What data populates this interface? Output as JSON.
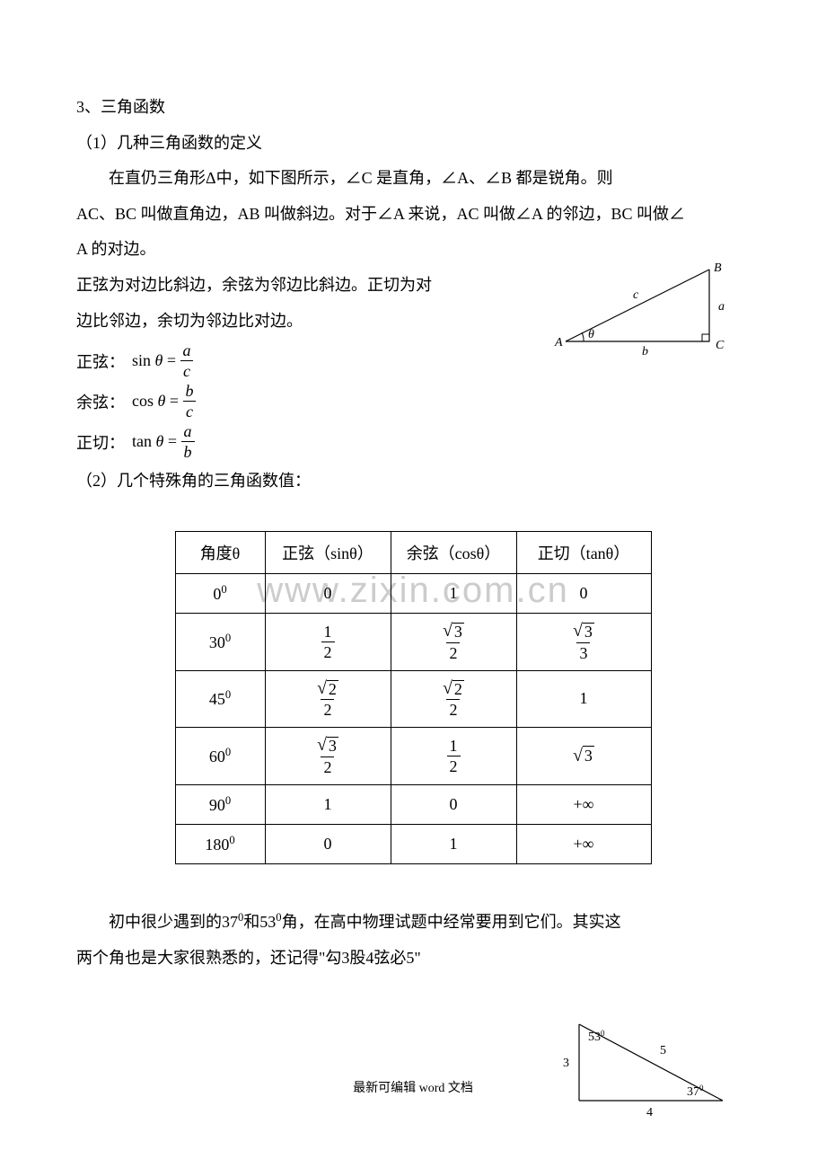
{
  "doc": {
    "section_heading": "3、三角函数",
    "sub1": "（1）几种三角函数的定义",
    "para1": "在直仍三角形Δ中，如下图所示，∠C 是直角，∠A、∠B 都是锐角。则",
    "para2": "AC、BC 叫做直角边，AB 叫做斜边。对于∠A 来说，AC 叫做∠A 的邻边，BC 叫做∠",
    "para3": "A 的对边。",
    "para4a": "正弦为对边比斜边，余弦为邻边比斜边。正切为对",
    "para4b": "边比邻边，余切为邻边比对边。",
    "formula_sin_label": "正弦：",
    "formula_sin_fn": "sin",
    "formula_sin_num": "a",
    "formula_sin_den": "c",
    "formula_cos_label": "余弦：",
    "formula_cos_fn": "cos",
    "formula_cos_num": "b",
    "formula_cos_den": "c",
    "formula_tan_label": "正切：",
    "formula_tan_fn": "tan",
    "formula_tan_num": "a",
    "formula_tan_den": "b",
    "theta": "θ",
    "equals": "=",
    "sub2": "（2）几个特殊角的三角函数值：",
    "watermark": "www.zixin.com.cn",
    "table": {
      "headers": [
        "角度θ",
        "正弦（sinθ）",
        "余弦（cosθ）",
        "正切（tanθ）"
      ],
      "rows": [
        {
          "angle_base": "0",
          "angle_sup": "0",
          "sin": {
            "type": "plain",
            "v": "0"
          },
          "cos": {
            "type": "plain",
            "v": "1"
          },
          "tan": {
            "type": "plain",
            "v": "0"
          }
        },
        {
          "angle_base": "30",
          "angle_sup": "0",
          "sin": {
            "type": "frac",
            "n": "1",
            "d": "2"
          },
          "cos": {
            "type": "sqrtfrac",
            "n": "3",
            "d": "2"
          },
          "tan": {
            "type": "sqrtfrac",
            "n": "3",
            "d": "3"
          }
        },
        {
          "angle_base": "45",
          "angle_sup": "0",
          "sin": {
            "type": "sqrtfrac",
            "n": "2",
            "d": "2"
          },
          "cos": {
            "type": "sqrtfrac",
            "n": "2",
            "d": "2"
          },
          "tan": {
            "type": "plain",
            "v": "1"
          }
        },
        {
          "angle_base": "60",
          "angle_sup": "0",
          "sin": {
            "type": "sqrtfrac",
            "n": "3",
            "d": "2"
          },
          "cos": {
            "type": "frac",
            "n": "1",
            "d": "2"
          },
          "tan": {
            "type": "sqrt",
            "v": "3"
          }
        },
        {
          "angle_base": "90",
          "angle_sup": "0",
          "sin": {
            "type": "plain",
            "v": "1"
          },
          "cos": {
            "type": "plain",
            "v": "0"
          },
          "tan": {
            "type": "plain",
            "v": "+∞"
          }
        },
        {
          "angle_base": "180",
          "angle_sup": "0",
          "sin": {
            "type": "plain",
            "v": "0"
          },
          "cos": {
            "type": "plain",
            "v": "1"
          },
          "tan": {
            "type": "plain",
            "v": "+∞"
          }
        }
      ]
    },
    "para5_a": "初中很少遇到的37",
    "para5_b": "和53",
    "para5_c": "角，在高中物理试题中经常要用到它们。其实这",
    "para5_sup": "0",
    "para6": "两个角也是大家很熟悉的，还记得\"勾3股4弦必5\"",
    "footer": "最新可编辑 word 文档",
    "triangle_labels": {
      "A": "A",
      "B": "B",
      "C": "C",
      "a": "a",
      "b": "b",
      "c": "c",
      "theta": "θ"
    },
    "small_triangle": {
      "angle1": "53",
      "angle1_sup": "0",
      "angle2": "37",
      "angle2_sup": "0",
      "side_left": "3",
      "side_bottom": "4",
      "side_hyp": "5"
    }
  },
  "colors": {
    "text": "#000000",
    "watermark": "#cccccc",
    "border": "#000000",
    "background": "#ffffff"
  }
}
